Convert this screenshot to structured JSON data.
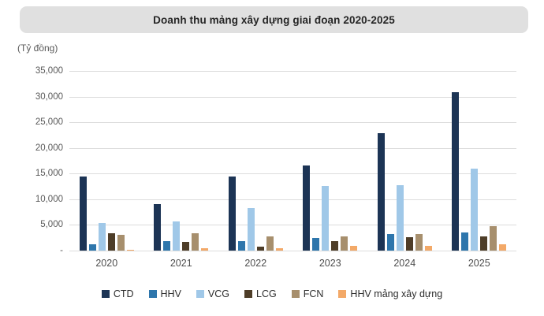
{
  "header": {
    "title": "Doanh thu mảng xây dựng giai đoạn 2020-2025"
  },
  "y_unit_label": "(Tỷ đồng)",
  "chart_data": {
    "type": "bar",
    "title": "Doanh thu mảng xây dựng giai đoạn 2020-2025",
    "xlabel": "",
    "ylabel": "(Tỷ đồng)",
    "ylim": [
      0,
      35000
    ],
    "ytick_step": 5000,
    "ytick_labels_top_to_bottom": [
      "35,000",
      "30,000",
      "25,000",
      "20,000",
      "15,000",
      "10,000",
      "5,000",
      "-"
    ],
    "grid": true,
    "legend_position": "bottom",
    "categories": [
      "2020",
      "2021",
      "2022",
      "2023",
      "2024",
      "2025"
    ],
    "series": [
      {
        "name": "CTD",
        "color": "#1c3455",
        "values": [
          14500,
          9000,
          14500,
          16600,
          22900,
          30800
        ]
      },
      {
        "name": "HHV",
        "color": "#2e76ac",
        "values": [
          1200,
          1800,
          1900,
          2500,
          3200,
          3500
        ]
      },
      {
        "name": "VCG",
        "color": "#a0c8e8",
        "values": [
          5400,
          5700,
          8300,
          12600,
          12800,
          16000
        ]
      },
      {
        "name": "LCG",
        "color": "#4e3d28",
        "values": [
          3400,
          1700,
          800,
          1800,
          2600,
          2800
        ]
      },
      {
        "name": "FCN",
        "color": "#a78f6d",
        "values": [
          3000,
          3400,
          2800,
          2700,
          3300,
          4800
        ]
      },
      {
        "name": "HHV mảng xây dựng",
        "color": "#f3a968",
        "values": [
          50,
          400,
          400,
          950,
          1000,
          1200
        ]
      }
    ]
  },
  "style_colors": {
    "title_bar_bg": "#e0e0e0",
    "title_text": "#262626",
    "gridline": "#dcdcdc",
    "axis_text": "#595959"
  }
}
